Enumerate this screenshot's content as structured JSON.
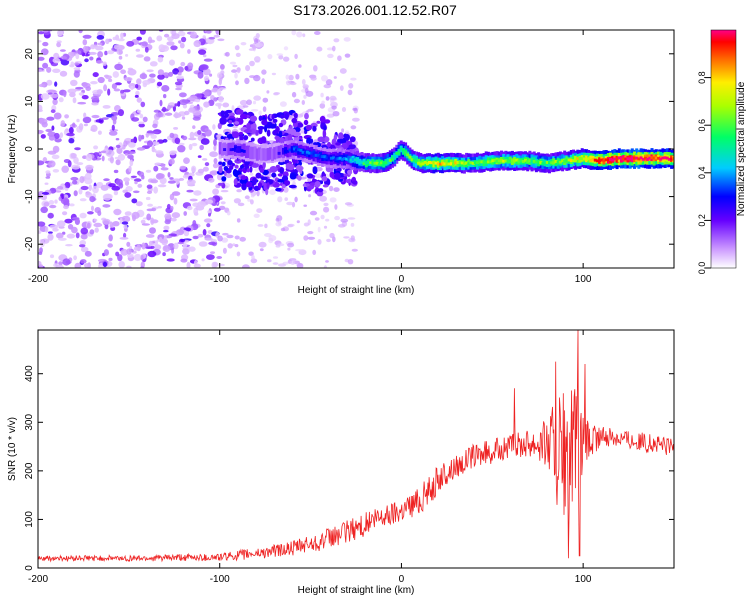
{
  "title": "S173.2026.001.12.52.R07",
  "colors": {
    "snr_line": "#ee2222",
    "frame": "#000000",
    "spectrogram_palette": [
      "#ffffff",
      "#8800ff",
      "#0000ff",
      "#00ffff",
      "#00ff00",
      "#ffff00",
      "#ff0000",
      "#ff0088"
    ]
  },
  "chart_data": [
    {
      "type": "heatmap",
      "title": "S173.2026.001.12.52.R07",
      "xlabel": "Height of straight line (km)",
      "ylabel": "Frequency (Hz)",
      "xlim": [
        -200,
        150
      ],
      "ylim": [
        -25,
        25
      ],
      "x_ticks": [
        "-200",
        "-100",
        "0",
        "100"
      ],
      "y_ticks": [
        "-20",
        "-10",
        "0",
        "10",
        "20"
      ],
      "colorbar": {
        "label": "Normalized spectral amplitude",
        "range": [
          0.0,
          1.0
        ],
        "ticks": [
          "0.0",
          "0.2",
          "0.4",
          "0.6",
          "0.8"
        ]
      },
      "ridge": {
        "description_values": "dominant-frequency track (Hz) vs height (km)",
        "x": [
          -100,
          -90,
          -80,
          -70,
          -60,
          -50,
          -40,
          -30,
          -20,
          -10,
          -5,
          0,
          5,
          10,
          20,
          30,
          40,
          50,
          60,
          70,
          80,
          90,
          100,
          110,
          120,
          130,
          140,
          150
        ],
        "freq": [
          0,
          0,
          -1,
          -1,
          0,
          -1,
          -2,
          -2,
          -3,
          -3,
          -2,
          0,
          -2,
          -3,
          -3,
          -3,
          -3,
          -2.5,
          -2.5,
          -2.5,
          -3,
          -2.5,
          -2,
          -2.5,
          -2,
          -2,
          -2,
          -2
        ],
        "amplitude": [
          0.2,
          0.25,
          0.2,
          0.2,
          0.3,
          0.3,
          0.3,
          0.35,
          0.5,
          0.55,
          0.5,
          0.5,
          0.55,
          0.6,
          0.7,
          0.65,
          0.55,
          0.6,
          0.6,
          0.55,
          0.55,
          0.6,
          0.7,
          0.9,
          0.95,
          0.95,
          0.9,
          0.85
        ]
      },
      "noise_floor": {
        "x_range": [
          -200,
          -100
        ],
        "amplitude": 0.1
      }
    },
    {
      "type": "line",
      "xlabel": "Height of straight line (km)",
      "ylabel": "SNR (10 * v/v)",
      "xlim": [
        -200,
        150
      ],
      "ylim": [
        0,
        490
      ],
      "x_ticks": [
        "-200",
        "-100",
        "0",
        "100"
      ],
      "y_ticks": [
        "0",
        "100",
        "200",
        "300",
        "400"
      ],
      "envelope": {
        "x": [
          -200,
          -150,
          -100,
          -80,
          -60,
          -40,
          -20,
          0,
          10,
          20,
          30,
          40,
          50,
          60,
          70,
          80,
          85,
          90,
          95,
          100,
          110,
          120,
          130,
          140,
          150
        ],
        "mean": [
          20,
          20,
          22,
          30,
          40,
          60,
          90,
          120,
          140,
          180,
          210,
          230,
          240,
          250,
          260,
          260,
          240,
          220,
          240,
          250,
          270,
          270,
          260,
          255,
          250
        ],
        "spread": [
          6,
          6,
          8,
          12,
          15,
          22,
          25,
          25,
          30,
          30,
          25,
          25,
          25,
          25,
          30,
          50,
          120,
          150,
          140,
          60,
          20,
          20,
          20,
          20,
          20
        ]
      },
      "peaks": [
        {
          "x": 62,
          "y": 370
        },
        {
          "x": 85,
          "y": 425
        },
        {
          "x": 97,
          "y": 490
        },
        {
          "x": 101,
          "y": 420
        },
        {
          "x": 92,
          "y": 20
        },
        {
          "x": 98,
          "y": 25
        }
      ]
    }
  ]
}
